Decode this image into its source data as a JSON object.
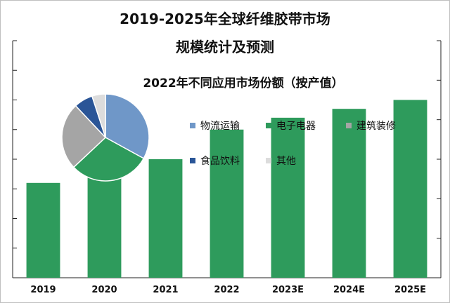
{
  "chart_data": [
    {
      "type": "bar",
      "title_lines": [
        "2019-2025年全球纤维胶带市场",
        "规模统计及预测"
      ],
      "categories": [
        "2019",
        "2020",
        "2021",
        "2022",
        "2023E",
        "2024E",
        "2025E"
      ],
      "values": [
        16,
        18.5,
        20,
        25,
        27,
        28.5,
        30
      ],
      "ylim": [
        0,
        40
      ],
      "bar_color": "#2e9b5c",
      "grid": false
    },
    {
      "type": "pie",
      "title": "2022年不同应用市场份额（按产值）",
      "slices": [
        {
          "label": "物流运输",
          "value": 33,
          "color": "#6f97c8"
        },
        {
          "label": "电子电器",
          "value": 30,
          "color": "#2e9b5c"
        },
        {
          "label": "建筑装修",
          "value": 25,
          "color": "#a5a5a5"
        },
        {
          "label": "食品饮料",
          "value": 7,
          "color": "#2a5597"
        },
        {
          "label": "其他",
          "value": 5,
          "color": "#dcdcdc"
        }
      ],
      "legend_placement": "right"
    }
  ]
}
